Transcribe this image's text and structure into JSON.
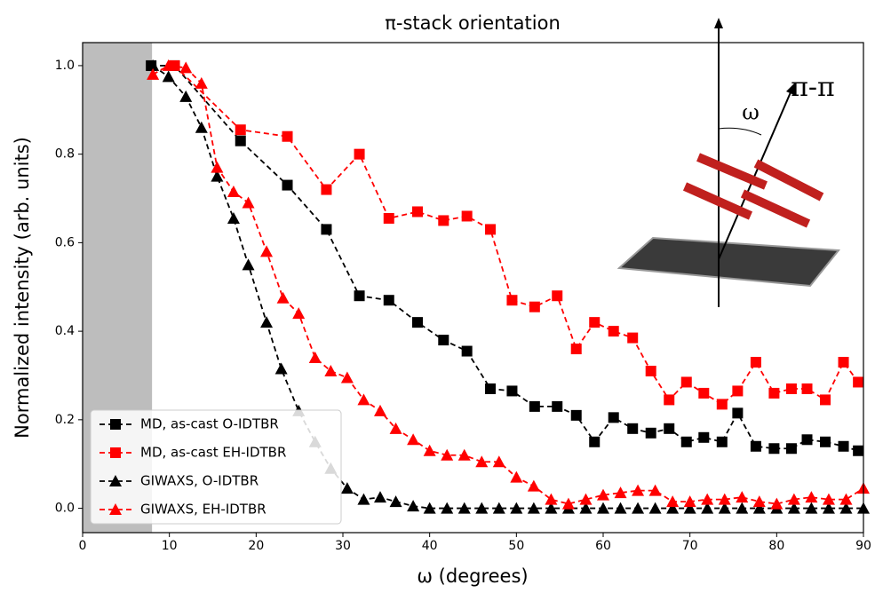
{
  "chart_data": {
    "type": "line",
    "title": "π-stack orientation",
    "xlabel": "ω (degrees)",
    "ylabel": "Normalized intensity (arb. units)",
    "xlim": [
      0,
      90
    ],
    "ylim": [
      -0.055,
      1.052
    ],
    "xticks": [
      0,
      10,
      20,
      30,
      40,
      50,
      60,
      70,
      80,
      90
    ],
    "yticks": [
      {
        "value": 0,
        "label": "0.0"
      },
      {
        "value": 0.2,
        "label": "0.2"
      },
      {
        "value": 0.4,
        "label": "0.4"
      },
      {
        "value": 0.6,
        "label": "0.6"
      },
      {
        "value": 0.8,
        "label": "0.8"
      },
      {
        "value": 1.0,
        "label": "1.0"
      }
    ],
    "shade": {
      "x": [
        0,
        8
      ],
      "color": "#bdbdbd"
    },
    "legend": "lower left",
    "series": [
      {
        "name": "MD, as-cast O-IDTBR",
        "color": "#000000",
        "marker": "square",
        "x": [
          7.9,
          10.6,
          18.2,
          23.6,
          28.1,
          31.9,
          35.3,
          38.6,
          41.6,
          44.3,
          47,
          49.5,
          52.1,
          54.7,
          56.9,
          59,
          61.2,
          63.4,
          65.5,
          67.6,
          69.6,
          71.6,
          73.7,
          75.5,
          77.6,
          79.7,
          81.7,
          83.5,
          85.6,
          87.7,
          89.4
        ],
        "values": [
          1.0,
          1.0,
          0.83,
          0.73,
          0.63,
          0.48,
          0.47,
          0.42,
          0.38,
          0.355,
          0.27,
          0.265,
          0.23,
          0.23,
          0.21,
          0.15,
          0.205,
          0.18,
          0.17,
          0.18,
          0.15,
          0.16,
          0.15,
          0.215,
          0.14,
          0.135,
          0.135,
          0.155,
          0.15,
          0.14,
          0.13
        ]
      },
      {
        "name": "MD, as-cast EH-IDTBR",
        "color": "#ff0000",
        "marker": "square",
        "x": [
          10.6,
          18.2,
          23.6,
          28.1,
          31.9,
          35.3,
          38.6,
          41.6,
          44.3,
          47,
          49.5,
          52.1,
          54.7,
          56.9,
          59,
          61.2,
          63.4,
          65.5,
          67.6,
          69.6,
          71.6,
          73.7,
          75.5,
          77.6,
          79.7,
          81.7,
          83.5,
          85.6,
          87.7,
          89.4
        ],
        "values": [
          1.0,
          0.855,
          0.84,
          0.72,
          0.8,
          0.655,
          0.67,
          0.65,
          0.66,
          0.63,
          0.47,
          0.455,
          0.48,
          0.36,
          0.42,
          0.4,
          0.385,
          0.31,
          0.245,
          0.285,
          0.26,
          0.235,
          0.265,
          0.33,
          0.26,
          0.27,
          0.27,
          0.245,
          0.33,
          0.285
        ]
      },
      {
        "name": "GIWAXS, O-IDTBR",
        "color": "#000000",
        "marker": "triangle",
        "x": [
          8.1,
          9.9,
          11.9,
          13.7,
          15.5,
          17.4,
          19.1,
          21.2,
          22.9,
          24.9,
          26.8,
          28.6,
          30.5,
          32.4,
          34.3,
          36.1,
          38.1,
          40,
          42,
          44,
          46,
          48,
          50,
          52,
          54,
          56,
          58,
          60,
          62,
          64,
          66,
          68,
          70,
          72,
          74,
          76,
          78,
          80,
          82,
          84,
          86,
          88,
          90
        ],
        "values": [
          1.0,
          0.975,
          0.93,
          0.86,
          0.75,
          0.655,
          0.55,
          0.42,
          0.315,
          0.22,
          0.15,
          0.09,
          0.045,
          0.02,
          0.025,
          0.015,
          0.005,
          0,
          0,
          0,
          0,
          0,
          0,
          0,
          0,
          0,
          0,
          0,
          0,
          0,
          0,
          0,
          0,
          0,
          0,
          0,
          0,
          0,
          0,
          0,
          0,
          0,
          0
        ]
      },
      {
        "name": "GIWAXS, EH-IDTBR",
        "color": "#ff0000",
        "marker": "triangle",
        "x": [
          8.1,
          9.9,
          11.9,
          13.7,
          15.5,
          17.4,
          19.1,
          21.2,
          23.1,
          24.9,
          26.8,
          28.6,
          30.5,
          32.4,
          34.3,
          36.1,
          38.1,
          40,
          42,
          44,
          46,
          48,
          50,
          52,
          54,
          56,
          58,
          60,
          62,
          64,
          66,
          68,
          70,
          72,
          74,
          76,
          78,
          80,
          82,
          84,
          86,
          88,
          90
        ],
        "values": [
          0.98,
          1.0,
          0.995,
          0.96,
          0.77,
          0.715,
          0.69,
          0.58,
          0.475,
          0.44,
          0.34,
          0.31,
          0.295,
          0.245,
          0.22,
          0.18,
          0.155,
          0.13,
          0.12,
          0.12,
          0.105,
          0.105,
          0.07,
          0.05,
          0.02,
          0.01,
          0.02,
          0.03,
          0.035,
          0.04,
          0.04,
          0.015,
          0.015,
          0.02,
          0.02,
          0.025,
          0.015,
          0.01,
          0.02,
          0.025,
          0.02,
          0.02,
          0.045
        ]
      }
    ],
    "inset_labels": [
      "π-π",
      "ω"
    ]
  }
}
